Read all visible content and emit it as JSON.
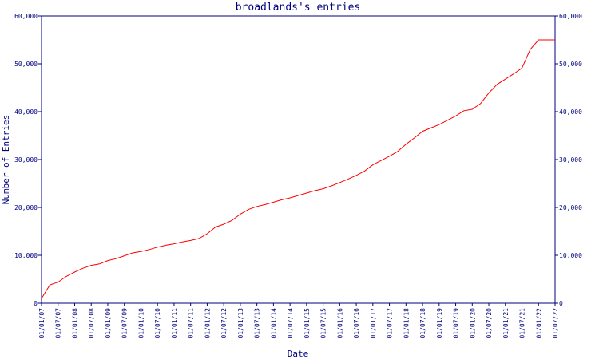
{
  "chart_data": {
    "type": "line",
    "title": "broadlands's entries",
    "xlabel": "Date",
    "ylabel": "Number of Entries",
    "ylim": [
      0,
      60000
    ],
    "y_ticks": [
      {
        "value": 0,
        "label": "0"
      },
      {
        "value": 10000,
        "label": "10,000"
      },
      {
        "value": 20000,
        "label": "20,000"
      },
      {
        "value": 30000,
        "label": "30,000"
      },
      {
        "value": 40000,
        "label": "40,000"
      },
      {
        "value": 50000,
        "label": "50,000"
      },
      {
        "value": 60000,
        "label": "60,000"
      }
    ],
    "x_ticks": [
      "01/01/07",
      "01/07/07",
      "01/01/08",
      "01/07/08",
      "01/01/09",
      "01/07/09",
      "01/01/10",
      "01/07/10",
      "01/01/11",
      "01/07/11",
      "01/01/12",
      "01/07/12",
      "01/01/13",
      "01/07/13",
      "01/01/14",
      "01/07/14",
      "01/01/15",
      "01/07/15",
      "01/01/16",
      "01/07/16",
      "01/01/17",
      "01/07/17",
      "01/01/18",
      "01/07/18",
      "01/01/19",
      "01/07/19",
      "01/01/20",
      "01/07/20",
      "01/01/21",
      "01/07/21",
      "01/01/22",
      "01/07/22"
    ],
    "line_color": "#ff0000",
    "axis_color": "#000080",
    "grid": false,
    "series": [
      {
        "x": [
          "01/01/07",
          "01/04/07",
          "01/07/07",
          "01/10/07",
          "01/01/08",
          "01/04/08",
          "01/07/08",
          "01/10/08",
          "01/01/09",
          "01/04/09",
          "01/07/09",
          "01/10/09",
          "01/01/10",
          "01/04/10",
          "01/07/10",
          "01/10/10",
          "01/01/11",
          "01/04/11",
          "01/07/11",
          "01/10/11",
          "01/01/12",
          "01/04/12",
          "01/07/12",
          "01/10/12",
          "01/01/13",
          "01/04/13",
          "01/07/13",
          "01/10/13",
          "01/01/14",
          "01/04/14",
          "01/07/14",
          "01/10/14",
          "01/01/15",
          "01/04/15",
          "01/07/15",
          "01/10/15",
          "01/01/16",
          "01/04/16",
          "01/07/16",
          "01/10/16",
          "01/01/17",
          "01/04/17",
          "01/07/17",
          "01/10/17",
          "01/01/18",
          "01/04/18",
          "01/07/18",
          "01/10/18",
          "01/01/19",
          "01/04/19",
          "01/07/19",
          "01/10/19",
          "01/01/20",
          "01/04/20",
          "01/07/20",
          "01/10/20",
          "01/01/21",
          "01/04/21",
          "01/07/21",
          "01/10/21",
          "01/01/22",
          "01/04/22",
          "01/07/22"
        ],
        "y": [
          1000,
          3800,
          4400,
          5600,
          6500,
          7300,
          7900,
          8200,
          8900,
          9300,
          9900,
          10500,
          10800,
          11200,
          11700,
          12100,
          12400,
          12800,
          13100,
          13500,
          14500,
          15900,
          16500,
          17300,
          18600,
          19600,
          20200,
          20600,
          21100,
          21600,
          22000,
          22500,
          23000,
          23500,
          23900,
          24500,
          25200,
          25900,
          26700,
          27600,
          28900,
          29800,
          30700,
          31700,
          33200,
          34500,
          35900,
          36600,
          37300,
          38200,
          39100,
          40200,
          40500,
          41700,
          43900,
          45700,
          46800,
          47900,
          49100,
          53000,
          55000,
          55000,
          55000
        ]
      }
    ]
  }
}
